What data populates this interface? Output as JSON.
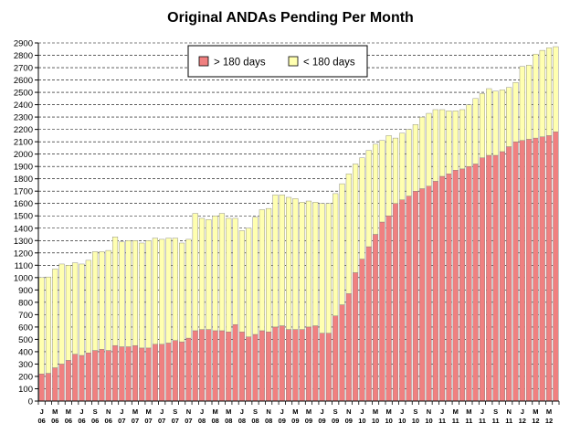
{
  "chart_data": {
    "type": "bar",
    "stacked": true,
    "title": "Original ANDAs Pending Per Month",
    "xlabel": "",
    "ylabel": "",
    "ylim": [
      0,
      2900
    ],
    "y_ticks": [
      0,
      100,
      200,
      300,
      400,
      500,
      600,
      700,
      800,
      900,
      1000,
      1100,
      1200,
      1300,
      1400,
      1500,
      1600,
      1700,
      1800,
      1900,
      2000,
      2100,
      2200,
      2300,
      2400,
      2500,
      2600,
      2700,
      2800,
      2900
    ],
    "grid": true,
    "legend_position": "top-center",
    "x_tick_labels": [
      {
        "index": 0,
        "month": "J",
        "year": "06"
      },
      {
        "index": 2,
        "month": "M",
        "year": "06"
      },
      {
        "index": 4,
        "month": "M",
        "year": "06"
      },
      {
        "index": 6,
        "month": "J",
        "year": "06"
      },
      {
        "index": 8,
        "month": "S",
        "year": "06"
      },
      {
        "index": 10,
        "month": "N",
        "year": "06"
      },
      {
        "index": 12,
        "month": "J",
        "year": "07"
      },
      {
        "index": 14,
        "month": "M",
        "year": "07"
      },
      {
        "index": 16,
        "month": "M",
        "year": "07"
      },
      {
        "index": 18,
        "month": "J",
        "year": "07"
      },
      {
        "index": 20,
        "month": "S",
        "year": "07"
      },
      {
        "index": 22,
        "month": "N",
        "year": "07"
      },
      {
        "index": 24,
        "month": "J",
        "year": "08"
      },
      {
        "index": 26,
        "month": "M",
        "year": "08"
      },
      {
        "index": 28,
        "month": "M",
        "year": "08"
      },
      {
        "index": 30,
        "month": "J",
        "year": "08"
      },
      {
        "index": 32,
        "month": "S",
        "year": "08"
      },
      {
        "index": 34,
        "month": "N",
        "year": "08"
      },
      {
        "index": 36,
        "month": "J",
        "year": "09"
      },
      {
        "index": 38,
        "month": "M",
        "year": "09"
      },
      {
        "index": 40,
        "month": "M",
        "year": "09"
      },
      {
        "index": 42,
        "month": "J",
        "year": "09"
      },
      {
        "index": 44,
        "month": "S",
        "year": "09"
      },
      {
        "index": 46,
        "month": "N",
        "year": "09"
      },
      {
        "index": 48,
        "month": "J",
        "year": "10"
      },
      {
        "index": 50,
        "month": "M",
        "year": "10"
      },
      {
        "index": 52,
        "month": "M",
        "year": "10"
      },
      {
        "index": 54,
        "month": "J",
        "year": "10"
      },
      {
        "index": 56,
        "month": "S",
        "year": "10"
      },
      {
        "index": 58,
        "month": "N",
        "year": "10"
      },
      {
        "index": 60,
        "month": "J",
        "year": "11"
      },
      {
        "index": 62,
        "month": "M",
        "year": "11"
      },
      {
        "index": 64,
        "month": "M",
        "year": "11"
      },
      {
        "index": 66,
        "month": "J",
        "year": "11"
      },
      {
        "index": 68,
        "month": "S",
        "year": "11"
      },
      {
        "index": 70,
        "month": "N",
        "year": "11"
      },
      {
        "index": 72,
        "month": "J",
        "year": "12"
      },
      {
        "index": 74,
        "month": "M",
        "year": "12"
      },
      {
        "index": 76,
        "month": "M",
        "year": "12"
      }
    ],
    "series": [
      {
        "name": "> 180 days",
        "color": "#f08080",
        "values": [
          220,
          225,
          270,
          300,
          330,
          380,
          370,
          390,
          410,
          420,
          410,
          450,
          440,
          440,
          450,
          430,
          430,
          460,
          460,
          470,
          490,
          480,
          510,
          570,
          580,
          580,
          570,
          570,
          560,
          620,
          560,
          520,
          540,
          570,
          560,
          600,
          610,
          580,
          580,
          580,
          600,
          610,
          550,
          550,
          690,
          780,
          870,
          1040,
          1150,
          1250,
          1350,
          1450,
          1500,
          1600,
          1630,
          1660,
          1700,
          1720,
          1740,
          1780,
          1820,
          1840,
          1870,
          1880,
          1900,
          1920,
          1970,
          1990,
          1990,
          2020,
          2060,
          2100,
          2110,
          2120,
          2130,
          2140,
          2150,
          2180
        ]
      },
      {
        "name": "< 180 days",
        "color": "#ffffb0",
        "values": [
          780,
          780,
          800,
          810,
          770,
          740,
          740,
          750,
          800,
          790,
          810,
          880,
          850,
          860,
          850,
          850,
          870,
          860,
          850,
          850,
          830,
          800,
          800,
          950,
          900,
          890,
          930,
          950,
          920,
          860,
          820,
          880,
          950,
          980,
          1000,
          1070,
          1060,
          1070,
          1060,
          1030,
          1020,
          1000,
          1050,
          1050,
          990,
          980,
          970,
          880,
          820,
          780,
          730,
          660,
          650,
          530,
          540,
          540,
          540,
          580,
          590,
          580,
          540,
          510,
          480,
          480,
          500,
          530,
          520,
          540,
          520,
          500,
          480,
          480,
          600,
          600,
          680,
          700,
          710,
          690
        ]
      }
    ]
  }
}
